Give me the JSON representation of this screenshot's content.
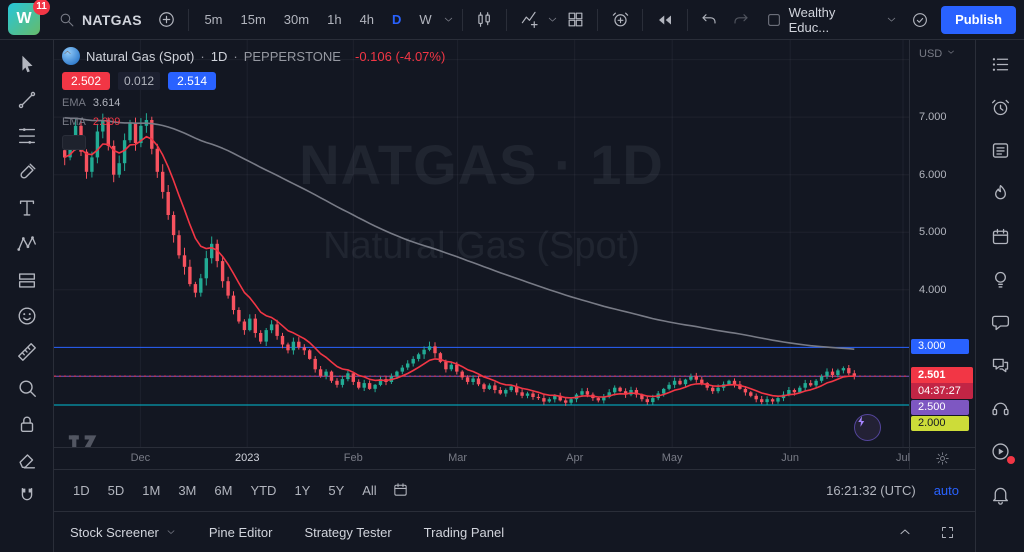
{
  "topbar": {
    "logo_text": "W",
    "badge": "11",
    "symbol": "NATGAS",
    "timeframes": [
      "5m",
      "15m",
      "30m",
      "1h",
      "4h",
      "D",
      "W"
    ],
    "active_timeframe": "D",
    "layout_name": "Wealthy Educ...",
    "publish": "Publish",
    "icons": [
      "search",
      "add",
      "chart-candles",
      "indicators",
      "grid-layout",
      "alarm-add",
      "replay",
      "undo",
      "redo",
      "layout-square",
      "cloud"
    ]
  },
  "legend": {
    "title": "Natural Gas (Spot)",
    "sep": "·",
    "interval": "1D",
    "exchange": "PEPPERSTONE",
    "change": "-0.106 (-4.07%)",
    "sell": "2.502",
    "spread": "0.012",
    "buy": "2.514",
    "ema1_label": "EMA",
    "ema1_value": "3.614",
    "ema2_label": "EMA",
    "ema2_value": "2.309"
  },
  "watermark": {
    "line1": "NATGAS · 1D",
    "line2": "Natural Gas (Spot)"
  },
  "axis": {
    "currency": "USD",
    "last_price": "2.501",
    "countdown": "04:37:27"
  },
  "chart_data": {
    "type": "candlestick",
    "title": "Natural Gas (Spot) · 1D · PEPPERSTONE",
    "last_price": 2.501,
    "change": -0.106,
    "change_pct": -4.07,
    "ylim": [
      1.27,
      8.34
    ],
    "colors": {
      "up": "#22ab94",
      "down": "#f7525f",
      "grid": "rgba(240,243,250,0.05)"
    },
    "closes": [
      6.3,
      6.55,
      6.85,
      6.4,
      6.05,
      6.3,
      6.75,
      6.95,
      6.5,
      6.0,
      6.2,
      6.6,
      6.9,
      6.55,
      6.85,
      6.95,
      6.45,
      6.05,
      5.7,
      5.3,
      4.95,
      4.6,
      4.4,
      4.1,
      3.95,
      4.2,
      4.55,
      4.8,
      4.5,
      4.15,
      3.9,
      3.65,
      3.45,
      3.3,
      3.5,
      3.25,
      3.1,
      3.3,
      3.4,
      3.2,
      3.05,
      2.95,
      3.1,
      3.0,
      2.95,
      2.8,
      2.62,
      2.5,
      2.58,
      2.42,
      2.35,
      2.45,
      2.55,
      2.4,
      2.3,
      2.38,
      2.28,
      2.35,
      2.45,
      2.4,
      2.5,
      2.58,
      2.65,
      2.72,
      2.8,
      2.88,
      2.96,
      3.02,
      2.9,
      2.75,
      2.62,
      2.7,
      2.58,
      2.48,
      2.4,
      2.46,
      2.36,
      2.28,
      2.34,
      2.26,
      2.2,
      2.26,
      2.32,
      2.22,
      2.16,
      2.2,
      2.14,
      2.12,
      2.06,
      2.1,
      2.16,
      2.08,
      2.04,
      2.1,
      2.18,
      2.24,
      2.18,
      2.12,
      2.08,
      2.14,
      2.22,
      2.3,
      2.24,
      2.18,
      2.26,
      2.18,
      2.1,
      2.05,
      2.12,
      2.2,
      2.28,
      2.35,
      2.42,
      2.36,
      2.44,
      2.5,
      2.44,
      2.38,
      2.3,
      2.24,
      2.3,
      2.36,
      2.42,
      2.36,
      2.28,
      2.22,
      2.16,
      2.1,
      2.05,
      2.1,
      2.06,
      2.12,
      2.18,
      2.26,
      2.22,
      2.3,
      2.38,
      2.34,
      2.42,
      2.5,
      2.58,
      2.52,
      2.6,
      2.64,
      2.55,
      2.501
    ],
    "y_ticks": [
      {
        "price": 7,
        "label": "7.000"
      },
      {
        "price": 6,
        "label": "6.000"
      },
      {
        "price": 5,
        "label": "5.000"
      },
      {
        "price": 4,
        "label": "4.000"
      }
    ],
    "price_lines": [
      {
        "price": 3.0,
        "color": "#2962ff",
        "label": "3.000",
        "label_bg": "#2962ff",
        "text": "#ffffff"
      },
      {
        "price": 2.5,
        "color": "#7e57c2",
        "label": "2.500",
        "label_bg": "#7e57c2",
        "text": "#ffffff"
      },
      {
        "price": 2.0,
        "color": "#00bcd4",
        "label": "2.000",
        "label_bg": "#cddc39",
        "text": "#131722"
      }
    ],
    "emas": [
      {
        "period": 120,
        "seed": 7.0,
        "color": "#787b86",
        "value": 3.614
      },
      {
        "period": 9,
        "seed": 6.3,
        "color": "#f23645",
        "value": 2.309
      }
    ],
    "x_labels": [
      {
        "label": "Dec",
        "f": 0.101
      },
      {
        "label": "2023",
        "f": 0.226,
        "major": true
      },
      {
        "label": "Feb",
        "f": 0.35
      },
      {
        "label": "Mar",
        "f": 0.472
      },
      {
        "label": "Apr",
        "f": 0.609
      },
      {
        "label": "May",
        "f": 0.723
      },
      {
        "label": "Jun",
        "f": 0.861
      },
      {
        "label": "Jul",
        "f": 0.993
      }
    ]
  },
  "toolbar_left": {
    "tools": [
      "cursor",
      "trend-line",
      "fib-retracement",
      "brush",
      "text",
      "xabcd-pattern",
      "position",
      "emoji",
      "ruler",
      "zoom",
      "lock",
      "eraser",
      "magnet"
    ]
  },
  "sidebar_right": {
    "tools": [
      "watchlist",
      "alerts",
      "news",
      "hotlists",
      "calendar",
      "ideas",
      "chat",
      "comments",
      "support",
      "streams",
      "notifications"
    ],
    "badge_on": "streams"
  },
  "bottom_toolbar": {
    "ranges": [
      "1D",
      "5D",
      "1M",
      "3M",
      "6M",
      "YTD",
      "1Y",
      "5Y",
      "All"
    ],
    "clock": "16:21:32 (UTC)",
    "scale": "auto"
  },
  "bottom_panel": {
    "tabs": [
      "Stock Screener",
      "Pine Editor",
      "Strategy Tester",
      "Trading Panel"
    ]
  }
}
